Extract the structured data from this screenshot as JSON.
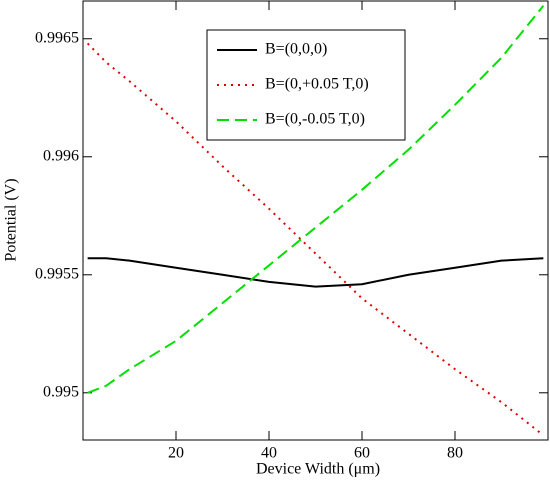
{
  "chart_data": {
    "type": "line",
    "xlabel": "Device Width (μm)",
    "ylabel": "Potential (V)",
    "x": [
      1,
      5,
      10,
      20,
      30,
      40,
      50,
      60,
      70,
      80,
      90,
      99
    ],
    "series": [
      {
        "name": "B=(0,0,0)",
        "color": "#000000",
        "style": "solid",
        "values": [
          0.99557,
          0.99557,
          0.99556,
          0.99553,
          0.9955,
          0.99547,
          0.99545,
          0.99546,
          0.9955,
          0.99553,
          0.99556,
          0.99557
        ]
      },
      {
        "name": "B=(0,+0.05 T,0)",
        "color": "#e00000",
        "style": "dotted",
        "values": [
          0.99648,
          0.9964,
          0.99632,
          0.99615,
          0.99596,
          0.99578,
          0.99559,
          0.9954,
          0.99525,
          0.9951,
          0.99496,
          0.99482
        ]
      },
      {
        "name": "B=(0,-0.05 T,0)",
        "color": "#00e000",
        "style": "dashed",
        "values": [
          0.995,
          0.99503,
          0.9951,
          0.99522,
          0.99538,
          0.99554,
          0.9957,
          0.99586,
          0.99603,
          0.99622,
          0.99642,
          0.99664
        ]
      }
    ],
    "xlim": [
      0,
      100
    ],
    "xticks": [
      20,
      40,
      60,
      80
    ],
    "ylim": [
      0.9948,
      0.99666
    ],
    "yticks": [
      0.995,
      0.9955,
      0.996,
      0.9965
    ],
    "grid": false,
    "legend": "upper center"
  }
}
